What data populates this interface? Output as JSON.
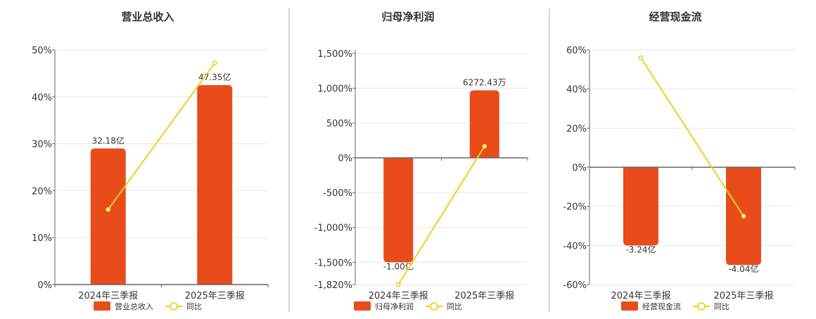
{
  "colors": {
    "bar": "#e84c1a",
    "line": "#f0d020",
    "point_fill": "#ffffff",
    "grid": "#e6e6ee",
    "axis": "#666666",
    "text": "#333333",
    "divider": "#aaaaaa"
  },
  "chart_data": [
    {
      "type": "bar",
      "title": "营业总收入",
      "categories": [
        "2024年三季报",
        "2025年三季报"
      ],
      "series": [
        {
          "name": "营业总收入",
          "type": "bar",
          "labels": [
            "32.18亿",
            "47.35亿"
          ],
          "values": [
            32.18,
            47.35
          ],
          "unit": "亿"
        },
        {
          "name": "同比",
          "type": "line",
          "values": [
            16,
            47.2
          ],
          "unit": "%"
        }
      ],
      "y_ticks": [
        "0%",
        "10%",
        "20%",
        "30%",
        "40%",
        "50%"
      ],
      "ylim": [
        0,
        50
      ],
      "bar_percent": [
        29,
        42.5
      ],
      "legend": [
        {
          "label": "营业总收入",
          "kind": "bar"
        },
        {
          "label": "同比",
          "kind": "line"
        }
      ],
      "legend_position": "bottom",
      "grid": true
    },
    {
      "type": "bar",
      "title": "归母净利润",
      "categories": [
        "2024年三季报",
        "2025年三季报"
      ],
      "series": [
        {
          "name": "归母净利润",
          "type": "bar",
          "labels": [
            "-1.00亿",
            "6272.43万"
          ],
          "values": [
            -1.0,
            0.627243
          ],
          "unit": "亿"
        },
        {
          "name": "同比",
          "type": "line",
          "values": [
            -1820,
            165
          ],
          "unit": "%"
        }
      ],
      "y_ticks": [
        "-1,820%",
        "-1,500%",
        "-1,000%",
        "-500%",
        "0%",
        "500%",
        "1,000%",
        "1,500%"
      ],
      "ylim": [
        -1820,
        1550
      ],
      "bar_percent": [
        -1500,
        970
      ],
      "legend": [
        {
          "label": "归母净利润",
          "kind": "bar"
        },
        {
          "label": "同比",
          "kind": "line"
        }
      ],
      "legend_position": "bottom",
      "grid": true
    },
    {
      "type": "bar",
      "title": "经营现金流",
      "categories": [
        "2024年三季报",
        "2025年三季报"
      ],
      "series": [
        {
          "name": "经营现金流",
          "type": "bar",
          "labels": [
            "-3.24亿",
            "-4.04亿"
          ],
          "values": [
            -3.24,
            -4.04
          ],
          "unit": "亿"
        },
        {
          "name": "同比",
          "type": "line",
          "values": [
            56,
            -25
          ],
          "unit": "%"
        }
      ],
      "y_ticks": [
        "-60%",
        "-40%",
        "-20%",
        "0%",
        "20%",
        "40%",
        "60%"
      ],
      "ylim": [
        -60,
        60
      ],
      "bar_percent": [
        -40,
        -50
      ],
      "legend": [
        {
          "label": "经营现金流",
          "kind": "bar"
        },
        {
          "label": "同比",
          "kind": "line"
        }
      ],
      "legend_position": "bottom",
      "grid": true
    }
  ]
}
